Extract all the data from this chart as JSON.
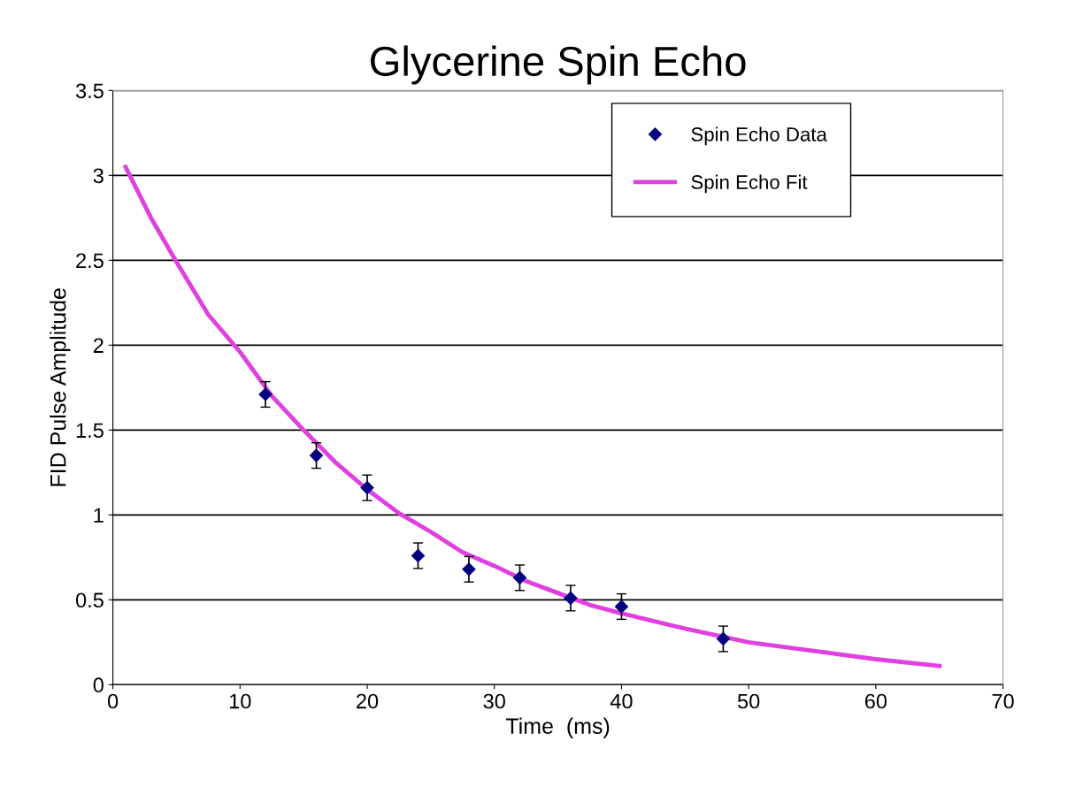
{
  "chart_data": {
    "type": "scatter",
    "title": "Glycerine Spin Echo",
    "xlabel": "Time  (ms)",
    "ylabel": "FID Pulse Amplitude",
    "xlim": [
      0,
      70
    ],
    "xticks": [
      0,
      10,
      20,
      30,
      40,
      50,
      60,
      70
    ],
    "ylim": [
      0,
      3.5
    ],
    "yticks": [
      0,
      0.5,
      1,
      1.5,
      2,
      2.5,
      3,
      3.5
    ],
    "grid": "y",
    "legend": "top right",
    "marker": "diamond",
    "series": [
      {
        "name": "Spin Echo Data",
        "color": "#000080",
        "x": [
          12,
          16,
          20,
          24,
          28,
          32,
          36,
          40,
          48
        ],
        "values": [
          1.71,
          1.35,
          1.16,
          0.76,
          0.68,
          0.63,
          0.51,
          0.46,
          0.27
        ],
        "errors": [
          0.075,
          0.075,
          0.075,
          0.075,
          0.075,
          0.075,
          0.075,
          0.075,
          0.075
        ]
      },
      {
        "name": "Spin Echo Fit",
        "type": "line",
        "color": "#e040e0",
        "marker": "none",
        "x": [
          1,
          3,
          5,
          7.5,
          10,
          12.5,
          15,
          17.5,
          20,
          22.5,
          25,
          27.5,
          30,
          32.5,
          35,
          37.5,
          40,
          45,
          50,
          55,
          60,
          65
        ],
        "values": [
          3.05,
          2.75,
          2.49,
          2.18,
          1.96,
          1.7,
          1.5,
          1.31,
          1.15,
          1.01,
          0.9,
          0.78,
          0.7,
          0.61,
          0.54,
          0.47,
          0.42,
          0.33,
          0.25,
          0.2,
          0.15,
          0.11
        ]
      }
    ]
  }
}
